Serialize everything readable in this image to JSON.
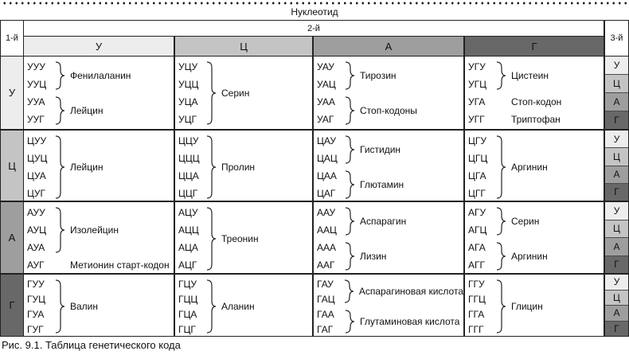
{
  "title": "Нуклеотид",
  "caption": "Рис. 9.1. Таблица генетического кода",
  "axis": {
    "first": "1-й",
    "second": "2-й",
    "third": "3-й"
  },
  "shade_keys": [
    "u",
    "c",
    "a",
    "g"
  ],
  "colors": {
    "u": "#ededed",
    "c": "#c4c4c4",
    "a": "#9e9e9e",
    "g": "#686868",
    "border": "#222222"
  },
  "second_headers": [
    "У",
    "Ц",
    "А",
    "Г"
  ],
  "third_labels": [
    "У",
    "Ц",
    "А",
    "Г"
  ],
  "rows": [
    {
      "first": "У",
      "cells": [
        {
          "groups": [
            {
              "codons": [
                "УУУ",
                "УУЦ"
              ],
              "brace": true,
              "name": "Фенилаланин"
            },
            {
              "codons": [
                "УУА",
                "УУГ"
              ],
              "brace": true,
              "name": "Лейцин"
            }
          ]
        },
        {
          "groups": [
            {
              "codons": [
                "УЦУ",
                "УЦЦ",
                "УЦА",
                "УЦГ"
              ],
              "brace": true,
              "name": "Серин"
            }
          ]
        },
        {
          "groups": [
            {
              "codons": [
                "УАУ",
                "УАЦ"
              ],
              "brace": true,
              "name": "Тирозин"
            },
            {
              "codons": [
                "УАА",
                "УАГ"
              ],
              "brace": true,
              "name": "Стоп-кодоны"
            }
          ]
        },
        {
          "groups": [
            {
              "codons": [
                "УГУ",
                "УГЦ"
              ],
              "brace": true,
              "name": "Цистеин"
            },
            {
              "codons": [
                "УГА"
              ],
              "brace": false,
              "name": "Стоп-кодон"
            },
            {
              "codons": [
                "УГГ"
              ],
              "brace": false,
              "name": "Триптофан"
            }
          ]
        }
      ]
    },
    {
      "first": "Ц",
      "cells": [
        {
          "groups": [
            {
              "codons": [
                "ЦУУ",
                "ЦУЦ",
                "ЦУА",
                "ЦУГ"
              ],
              "brace": true,
              "name": "Лейцин"
            }
          ]
        },
        {
          "groups": [
            {
              "codons": [
                "ЦЦУ",
                "ЦЦЦ",
                "ЦЦА",
                "ЦЦГ"
              ],
              "brace": true,
              "name": "Пролин"
            }
          ]
        },
        {
          "groups": [
            {
              "codons": [
                "ЦАУ",
                "ЦАЦ"
              ],
              "brace": true,
              "name": "Гистидин"
            },
            {
              "codons": [
                "ЦАА",
                "ЦАГ"
              ],
              "brace": true,
              "name": "Глютамин"
            }
          ]
        },
        {
          "groups": [
            {
              "codons": [
                "ЦГУ",
                "ЦГЦ",
                "ЦГА",
                "ЦГГ"
              ],
              "brace": true,
              "name": "Аргинин"
            }
          ]
        }
      ]
    },
    {
      "first": "А",
      "cells": [
        {
          "groups": [
            {
              "codons": [
                "АУУ",
                "АУЦ",
                "АУА"
              ],
              "brace": true,
              "name": "Изолейцин"
            },
            {
              "codons": [
                "АУГ"
              ],
              "brace": false,
              "name": "Метионин старт-кодон"
            }
          ]
        },
        {
          "groups": [
            {
              "codons": [
                "АЦУ",
                "АЦЦ",
                "АЦА",
                "АЦГ"
              ],
              "brace": true,
              "name": "Треонин"
            }
          ]
        },
        {
          "groups": [
            {
              "codons": [
                "ААУ",
                "ААЦ"
              ],
              "brace": true,
              "name": "Аспарагин"
            },
            {
              "codons": [
                "ААА",
                "ААГ"
              ],
              "brace": true,
              "name": "Лизин"
            }
          ]
        },
        {
          "groups": [
            {
              "codons": [
                "АГУ",
                "АГЦ"
              ],
              "brace": true,
              "name": "Серин"
            },
            {
              "codons": [
                "АГА",
                "АГГ"
              ],
              "brace": true,
              "name": "Аргинин"
            }
          ]
        }
      ]
    },
    {
      "first": "Г",
      "cells": [
        {
          "groups": [
            {
              "codons": [
                "ГУУ",
                "ГУЦ",
                "ГУА",
                "ГУГ"
              ],
              "brace": true,
              "name": "Валин"
            }
          ]
        },
        {
          "groups": [
            {
              "codons": [
                "ГЦУ",
                "ГЦЦ",
                "ГЦА",
                "ГЦГ"
              ],
              "brace": true,
              "name": "Аланин"
            }
          ]
        },
        {
          "groups": [
            {
              "codons": [
                "ГАУ",
                "ГАЦ"
              ],
              "brace": true,
              "name": "Аспарагиновая кислота"
            },
            {
              "codons": [
                "ГАА",
                "ГАГ"
              ],
              "brace": true,
              "name": "Глутаминовая кислота"
            }
          ]
        },
        {
          "groups": [
            {
              "codons": [
                "ГГУ",
                "ГГЦ",
                "ГГА",
                "ГГГ"
              ],
              "brace": true,
              "name": "Глицин"
            }
          ]
        }
      ]
    }
  ]
}
